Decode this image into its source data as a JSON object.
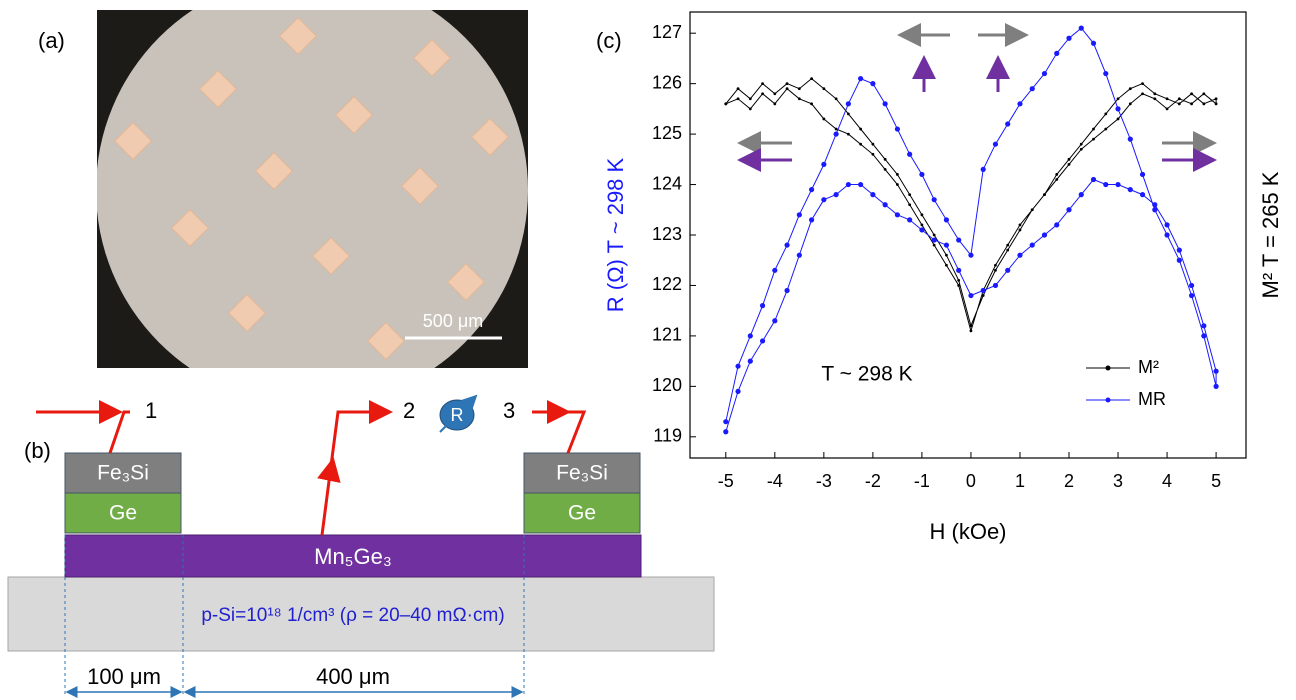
{
  "panel_a": {
    "label": "(a)",
    "scale_bar": "500 μm"
  },
  "panel_b": {
    "label": "(b)",
    "layers": {
      "contact": "Fe₃Si",
      "buffer": "Ge",
      "film": "Mn₅Ge₃",
      "substrate": "p-Si=10¹⁸ 1/cm³ (ρ = 20–40 mΩ·cm)"
    },
    "terminals": [
      "1",
      "2",
      "3"
    ],
    "meter": "R",
    "dimensions": [
      "100 μm",
      "400 μm"
    ]
  },
  "chart_data": {
    "type": "line",
    "panel_label": "(c)",
    "x_label": "H (kOe)",
    "y_label": "R (Ω) T ~ 298 K",
    "y2_label": "M² T = 265 K",
    "annotation": "T ~ 298 K",
    "x": [
      -5,
      -4.75,
      -4.5,
      -4.25,
      -4,
      -3.75,
      -3.5,
      -3.25,
      -3,
      -2.75,
      -2.5,
      -2.25,
      -2,
      -1.75,
      -1.5,
      -1.25,
      -1,
      -0.75,
      -0.5,
      -0.25,
      0,
      0.25,
      0.5,
      0.75,
      1,
      1.25,
      1.5,
      1.75,
      2,
      2.25,
      2.5,
      2.75,
      3,
      3.25,
      3.5,
      3.75,
      4,
      4.25,
      4.5,
      4.75,
      5,
      5,
      4.75,
      4.5,
      4.25,
      4,
      3.75,
      3.5,
      3.25,
      3,
      2.75,
      2.5,
      2.25,
      2,
      1.75,
      1.5,
      1.25,
      1,
      0.75,
      0.5,
      0.25,
      0,
      -0.25,
      -0.5,
      -0.75,
      -1,
      -1.25,
      -1.5,
      -1.75,
      -2,
      -2.25,
      -2.5,
      -2.75,
      -3,
      -3.25,
      -3.5,
      -3.75,
      -4,
      -4.25,
      -4.5,
      -4.75,
      -5
    ],
    "series": [
      {
        "name": "M²",
        "color": "#000000",
        "values": [
          125.6,
          125.7,
          125.5,
          125.8,
          125.6,
          125.9,
          125.7,
          125.6,
          125.3,
          125.1,
          125.0,
          124.8,
          124.6,
          124.3,
          124.0,
          123.6,
          123.2,
          122.8,
          122.4,
          122.0,
          121.1,
          121.9,
          122.4,
          122.8,
          123.2,
          123.5,
          123.8,
          124.2,
          124.5,
          124.8,
          125.1,
          125.4,
          125.7,
          125.9,
          126.0,
          125.8,
          125.7,
          125.6,
          125.8,
          125.6,
          125.7,
          125.6,
          125.8,
          125.6,
          125.7,
          125.5,
          125.7,
          125.8,
          125.6,
          125.3,
          125.1,
          124.9,
          124.7,
          124.4,
          124.1,
          123.8,
          123.5,
          123.1,
          122.7,
          122.3,
          121.8,
          121.2,
          122.1,
          122.6,
          123.0,
          123.4,
          123.8,
          124.2,
          124.5,
          124.8,
          125.1,
          125.4,
          125.7,
          125.9,
          126.1,
          125.9,
          126.0,
          125.8,
          126.0,
          125.7,
          125.9,
          125.6
        ]
      },
      {
        "name": "MR",
        "color": "#1a1aff",
        "values": [
          119.3,
          120.4,
          121.0,
          121.6,
          122.3,
          122.8,
          123.4,
          123.9,
          124.4,
          125.0,
          125.6,
          126.1,
          126.0,
          125.6,
          125.1,
          124.6,
          124.2,
          123.7,
          123.3,
          122.9,
          122.6,
          124.3,
          124.8,
          125.2,
          125.6,
          125.9,
          126.2,
          126.6,
          126.9,
          127.1,
          126.8,
          126.2,
          125.5,
          124.9,
          124.2,
          123.5,
          123.0,
          122.5,
          121.8,
          121.0,
          120.0,
          120.3,
          121.2,
          122.0,
          122.7,
          123.2,
          123.6,
          123.8,
          123.9,
          124.0,
          124.0,
          124.1,
          123.8,
          123.5,
          123.2,
          123.0,
          122.8,
          122.6,
          122.3,
          122.0,
          121.9,
          121.8,
          122.3,
          122.8,
          122.9,
          123.1,
          123.3,
          123.4,
          123.6,
          123.8,
          124.0,
          124.0,
          123.8,
          123.7,
          123.3,
          122.6,
          121.9,
          121.3,
          120.9,
          120.5,
          119.9,
          119.1
        ]
      }
    ],
    "xlim": [
      -5.73,
      5.61
    ],
    "ylim": [
      118.58,
      127.42
    ],
    "xticks": [
      -5,
      -4,
      -3,
      -2,
      -1,
      0,
      1,
      2,
      3,
      4,
      5
    ],
    "yticks": [
      119,
      120,
      121,
      122,
      123,
      124,
      125,
      126,
      127
    ],
    "legend": "lower right"
  }
}
